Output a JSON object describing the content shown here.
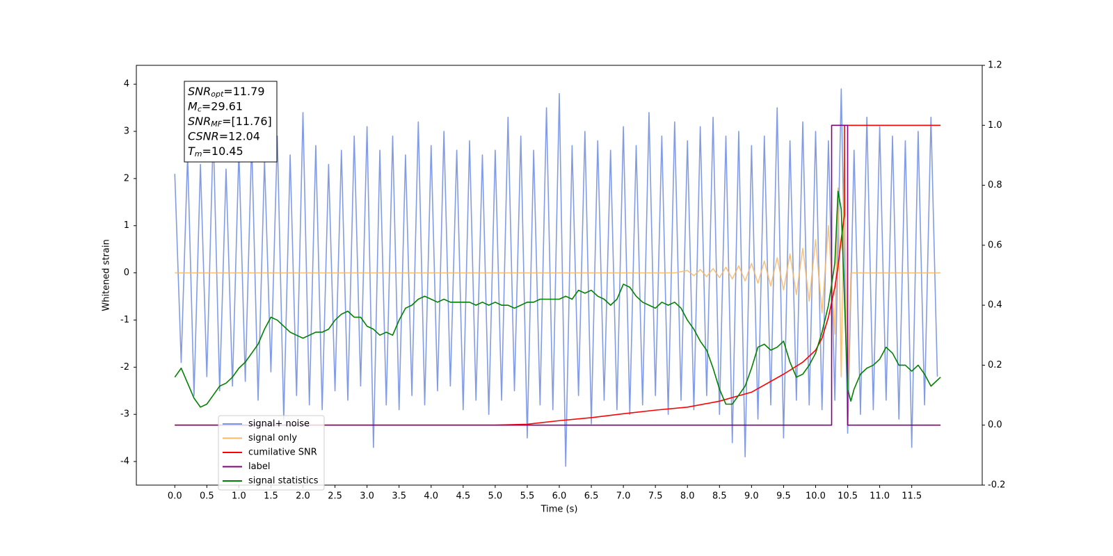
{
  "chart_data": {
    "type": "line",
    "xlabel": "Time (s)",
    "ylabel": "Whitened strain",
    "xlim": [
      -0.6,
      12.6
    ],
    "ylim": [
      -4.5,
      4.4
    ],
    "y2lim": [
      -0.2,
      1.2
    ],
    "xticks": [
      {
        "value": 0,
        "label": "0.0"
      },
      0.5,
      {
        "value": 1,
        "label": "1.0"
      },
      1.5,
      {
        "value": 2,
        "label": "2.0"
      },
      2.5,
      {
        "value": 3,
        "label": "3.0"
      },
      3.5,
      {
        "value": 4,
        "label": "4.0"
      },
      4.5,
      {
        "value": 5,
        "label": "5.0"
      },
      5.5,
      {
        "value": 6,
        "label": "6.0"
      },
      6.5,
      {
        "value": 7,
        "label": "7.0"
      },
      7.5,
      {
        "value": 8,
        "label": "8.0"
      },
      8.5,
      {
        "value": 9,
        "label": "9.0"
      },
      9.5,
      {
        "value": 10,
        "label": "10.0"
      },
      10.5,
      {
        "value": 11,
        "label": "11.0"
      },
      11.5
    ],
    "yticks": [
      -4,
      -3,
      -2,
      -1,
      0,
      1,
      2,
      3,
      4
    ],
    "y2ticks": [
      -0.2,
      {
        "value": 0,
        "label": "0.0"
      },
      0.2,
      0.4,
      0.6,
      0.8,
      {
        "value": 1,
        "label": "1.0"
      },
      1.2
    ],
    "annotation": [
      {
        "text": "SNR",
        "sub": "opt",
        "value": "=11.79"
      },
      {
        "text": "M",
        "sub": "c",
        "value": "=29.61"
      },
      {
        "text": "SNR",
        "sub": "MF",
        "value": "=[11.76]"
      },
      {
        "text": "CSNR",
        "value": "=12.04"
      },
      {
        "text": "T",
        "sub": "m",
        "value": "=10.45"
      }
    ],
    "series": [
      {
        "name": "signal+ noise",
        "color": "#7b96e6",
        "axis": "y",
        "x": [
          0.0,
          0.1,
          0.2,
          0.3,
          0.4,
          0.5,
          0.6,
          0.7,
          0.8,
          0.9,
          1.0,
          1.1,
          1.2,
          1.3,
          1.4,
          1.5,
          1.6,
          1.7,
          1.8,
          1.9,
          2.0,
          2.1,
          2.2,
          2.3,
          2.4,
          2.5,
          2.6,
          2.7,
          2.8,
          2.9,
          3.0,
          3.1,
          3.2,
          3.3,
          3.4,
          3.5,
          3.6,
          3.7,
          3.8,
          3.9,
          4.0,
          4.1,
          4.2,
          4.3,
          4.4,
          4.5,
          4.6,
          4.7,
          4.8,
          4.9,
          5.0,
          5.1,
          5.2,
          5.3,
          5.4,
          5.5,
          5.6,
          5.7,
          5.8,
          5.9,
          6.0,
          6.1,
          6.2,
          6.3,
          6.4,
          6.5,
          6.6,
          6.7,
          6.8,
          6.9,
          7.0,
          7.1,
          7.2,
          7.3,
          7.4,
          7.5,
          7.6,
          7.7,
          7.8,
          7.9,
          8.0,
          8.1,
          8.2,
          8.3,
          8.4,
          8.5,
          8.6,
          8.7,
          8.8,
          8.9,
          9.0,
          9.1,
          9.2,
          9.3,
          9.4,
          9.5,
          9.6,
          9.7,
          9.8,
          9.9,
          10.0,
          10.1,
          10.2,
          10.3,
          10.4,
          10.5,
          10.6,
          10.7,
          10.8,
          10.9,
          11.0,
          11.1,
          11.2,
          11.3,
          11.4,
          11.5,
          11.6,
          11.7,
          11.8,
          11.9
        ],
        "values": [
          2.1,
          -1.9,
          2.5,
          -2.6,
          2.3,
          -2.2,
          3.0,
          -2.5,
          2.2,
          -2.4,
          2.6,
          -2.3,
          2.8,
          -2.7,
          2.4,
          -2.1,
          2.9,
          -3.1,
          2.5,
          -2.6,
          3.4,
          -2.8,
          2.7,
          -2.9,
          2.3,
          -2.5,
          2.6,
          -2.7,
          2.9,
          -2.4,
          3.1,
          -3.7,
          2.6,
          -2.8,
          2.9,
          -2.9,
          2.5,
          -2.6,
          3.2,
          -2.8,
          2.7,
          -2.5,
          3.0,
          -2.4,
          2.6,
          -2.9,
          2.8,
          -2.7,
          2.5,
          -3.0,
          2.6,
          -2.7,
          3.3,
          -2.5,
          2.9,
          -3.5,
          2.6,
          -2.8,
          3.5,
          -2.9,
          3.8,
          -4.1,
          2.7,
          -2.6,
          3.0,
          -3.2,
          2.8,
          -2.7,
          2.6,
          -2.9,
          3.1,
          -3.0,
          2.7,
          -2.8,
          3.4,
          -2.6,
          2.9,
          -3.0,
          3.2,
          -2.7,
          2.8,
          -2.9,
          3.1,
          -2.6,
          3.3,
          -3.0,
          2.9,
          -3.6,
          3.0,
          -3.9,
          2.7,
          -3.1,
          2.9,
          -2.8,
          3.5,
          -3.5,
          2.8,
          -2.7,
          3.2,
          -2.8,
          3.0,
          -2.9,
          2.8,
          -2.7,
          3.9,
          -3.4,
          2.6,
          -3.0,
          3.3,
          -2.9,
          3.1,
          -2.7,
          2.9,
          -3.1,
          2.8,
          -3.7,
          3.0,
          -2.8,
          3.3,
          -2.2
        ]
      },
      {
        "name": "signal only",
        "color": "#f7b964",
        "axis": "y",
        "x": [
          0.0,
          7.8,
          8.0,
          8.1,
          8.2,
          8.3,
          8.4,
          8.5,
          8.6,
          8.7,
          8.8,
          8.9,
          9.0,
          9.1,
          9.2,
          9.3,
          9.4,
          9.5,
          9.6,
          9.7,
          9.8,
          9.9,
          10.0,
          10.1,
          10.2,
          10.3,
          10.35,
          10.4,
          10.45,
          10.5,
          10.55,
          11.95
        ],
        "values": [
          0,
          0,
          0.05,
          -0.06,
          0.07,
          -0.08,
          0.09,
          -0.1,
          0.12,
          -0.13,
          0.15,
          -0.17,
          0.2,
          -0.22,
          0.25,
          -0.28,
          0.32,
          -0.36,
          0.4,
          -0.46,
          0.52,
          -0.6,
          0.7,
          -0.85,
          1.0,
          -1.3,
          1.8,
          -2.2,
          2.6,
          -2.9,
          0,
          0
        ]
      },
      {
        "name": "cumilative SNR",
        "color": "#ff0000",
        "axis": "y2",
        "x": [
          0.0,
          5.0,
          5.5,
          6.0,
          6.5,
          7.0,
          7.5,
          8.0,
          8.5,
          9.0,
          9.5,
          9.8,
          10.0,
          10.1,
          10.2,
          10.3,
          10.35,
          10.4,
          10.45,
          10.45,
          11.95
        ],
        "values": [
          0,
          0,
          0.003,
          0.015,
          0.025,
          0.038,
          0.05,
          0.06,
          0.08,
          0.11,
          0.17,
          0.21,
          0.25,
          0.29,
          0.36,
          0.46,
          0.53,
          0.62,
          0.7,
          1.0,
          1.0
        ]
      },
      {
        "name": "label",
        "color": "#800080",
        "axis": "y2",
        "x": [
          0.0,
          10.25,
          10.25,
          10.5,
          10.5,
          11.95
        ],
        "values": [
          0,
          0,
          1,
          1,
          0,
          0
        ]
      },
      {
        "name": "signal statistics",
        "color": "#008000",
        "axis": "y2",
        "x": [
          0.0,
          0.1,
          0.2,
          0.3,
          0.4,
          0.5,
          0.6,
          0.7,
          0.8,
          0.9,
          1.0,
          1.1,
          1.2,
          1.3,
          1.4,
          1.5,
          1.6,
          1.7,
          1.8,
          1.9,
          2.0,
          2.1,
          2.2,
          2.3,
          2.4,
          2.5,
          2.6,
          2.7,
          2.8,
          2.9,
          3.0,
          3.1,
          3.2,
          3.3,
          3.4,
          3.5,
          3.6,
          3.7,
          3.8,
          3.9,
          4.0,
          4.1,
          4.2,
          4.3,
          4.4,
          4.5,
          4.6,
          4.7,
          4.8,
          4.9,
          5.0,
          5.1,
          5.2,
          5.3,
          5.4,
          5.5,
          5.6,
          5.7,
          5.8,
          5.9,
          6.0,
          6.1,
          6.2,
          6.3,
          6.4,
          6.5,
          6.6,
          6.7,
          6.8,
          6.9,
          7.0,
          7.1,
          7.2,
          7.3,
          7.4,
          7.5,
          7.6,
          7.7,
          7.8,
          7.9,
          8.0,
          8.1,
          8.2,
          8.3,
          8.4,
          8.5,
          8.6,
          8.7,
          8.8,
          8.9,
          9.0,
          9.1,
          9.2,
          9.3,
          9.4,
          9.5,
          9.6,
          9.7,
          9.8,
          9.9,
          10.0,
          10.1,
          10.2,
          10.3,
          10.35,
          10.4,
          10.45,
          10.5,
          10.55,
          10.6,
          10.7,
          10.8,
          10.9,
          11.0,
          11.1,
          11.2,
          11.3,
          11.4,
          11.5,
          11.6,
          11.7,
          11.8,
          11.9,
          11.95
        ],
        "values": [
          0.16,
          0.19,
          0.14,
          0.09,
          0.06,
          0.07,
          0.1,
          0.13,
          0.14,
          0.16,
          0.19,
          0.21,
          0.24,
          0.27,
          0.32,
          0.36,
          0.35,
          0.33,
          0.31,
          0.3,
          0.29,
          0.3,
          0.31,
          0.31,
          0.32,
          0.35,
          0.37,
          0.38,
          0.36,
          0.36,
          0.33,
          0.32,
          0.3,
          0.31,
          0.3,
          0.35,
          0.39,
          0.4,
          0.42,
          0.43,
          0.42,
          0.41,
          0.42,
          0.41,
          0.41,
          0.41,
          0.41,
          0.4,
          0.41,
          0.4,
          0.41,
          0.4,
          0.4,
          0.39,
          0.4,
          0.41,
          0.41,
          0.42,
          0.42,
          0.42,
          0.42,
          0.43,
          0.42,
          0.45,
          0.44,
          0.45,
          0.43,
          0.42,
          0.4,
          0.42,
          0.47,
          0.46,
          0.43,
          0.41,
          0.4,
          0.39,
          0.41,
          0.4,
          0.41,
          0.39,
          0.35,
          0.32,
          0.28,
          0.25,
          0.19,
          0.12,
          0.07,
          0.07,
          0.1,
          0.13,
          0.19,
          0.26,
          0.27,
          0.25,
          0.26,
          0.28,
          0.21,
          0.16,
          0.17,
          0.2,
          0.24,
          0.31,
          0.4,
          0.54,
          0.78,
          0.72,
          0.42,
          0.12,
          0.08,
          0.12,
          0.17,
          0.19,
          0.2,
          0.22,
          0.26,
          0.24,
          0.2,
          0.2,
          0.18,
          0.2,
          0.17,
          0.13,
          0.15,
          0.16
        ]
      }
    ]
  }
}
